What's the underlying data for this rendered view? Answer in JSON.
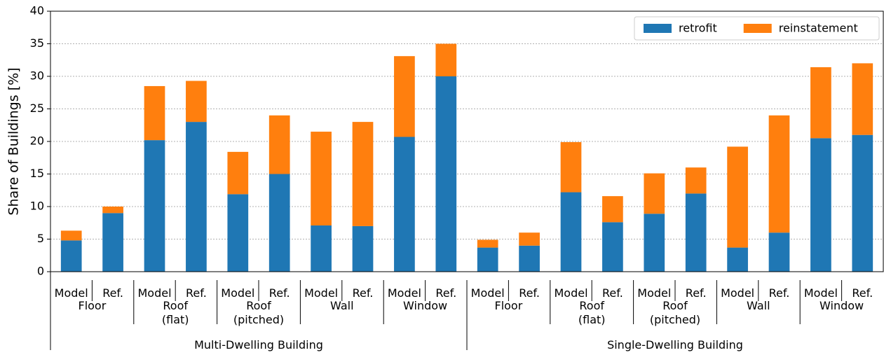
{
  "chart_data": {
    "type": "stacked_bar",
    "y_label": "Share of Buildings [%]",
    "categories": [
      "Model",
      "Ref.",
      "Model",
      "Ref.",
      "Model",
      "Ref.",
      "Model",
      "Ref.",
      "Model",
      "Ref.",
      "Model",
      "Ref.",
      "Model",
      "Ref.",
      "Model",
      "Ref.",
      "Model",
      "Ref.",
      "Model",
      "Ref."
    ],
    "element_labels": [
      "Floor",
      "Roof\n(flat)",
      "Roof\n(pitched)",
      "Wall",
      "Window",
      "Floor",
      "Roof\n(flat)",
      "Roof\n(pitched)",
      "Wall",
      "Window"
    ],
    "building_labels": [
      "Multi-Dwelling Building",
      "Single-Dwelling Building"
    ],
    "series": [
      {
        "name": "retrofit",
        "color": "#1f77b4",
        "values": [
          4.8,
          9,
          20.2,
          23,
          11.9,
          15,
          7.1,
          7,
          20.7,
          30,
          3.7,
          4,
          12.2,
          7.6,
          8.9,
          12,
          3.7,
          6,
          20.5,
          21
        ]
      },
      {
        "name": "reinstatement",
        "color": "#ff7f0e",
        "values": [
          1.5,
          1,
          8.3,
          6.3,
          6.5,
          9,
          14.4,
          16,
          12.4,
          5,
          1.2,
          2,
          7.7,
          4,
          6.2,
          4,
          15.5,
          18,
          10.9,
          11
        ]
      }
    ],
    "ylim": [
      0,
      40
    ],
    "yticks": [
      0,
      5,
      10,
      15,
      20,
      25,
      30,
      35,
      40
    ],
    "grid": true,
    "legend": "upper right"
  }
}
